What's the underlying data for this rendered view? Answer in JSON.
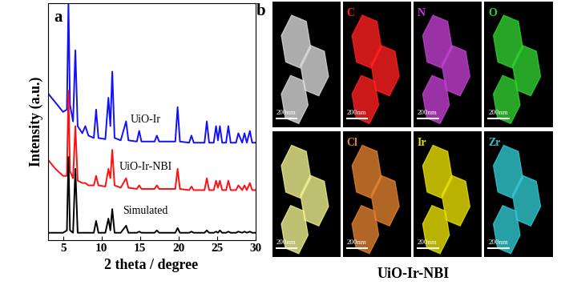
{
  "chart_data": {
    "type": "line",
    "panel_label": "a",
    "x_label": "2 theta / degree",
    "y_label": "Intensity (a.u.)",
    "x": [
      3,
      4,
      5,
      5.5,
      5.7,
      5.9,
      6.3,
      6.6,
      6.9,
      7.5,
      7.9,
      8.3,
      9.0,
      9.3,
      9.6,
      10.5,
      10.9,
      11.15,
      11.4,
      11.7,
      12.5,
      13.2,
      13.5,
      14.6,
      14.9,
      15.2,
      16.9,
      17.2,
      17.5,
      19.6,
      19.9,
      20.2,
      21.4,
      21.7,
      22.0,
      23.4,
      23.7,
      24.0,
      24.6,
      24.9,
      25.15,
      25.4,
      25.7,
      26.2,
      26.5,
      26.8,
      27.5,
      27.8,
      28.3,
      28.6,
      28.9,
      29.3,
      29.6,
      30
    ],
    "series": [
      {
        "name": "UiO-Ir",
        "color": "#1010ff",
        "values": [
          62,
          58,
          54,
          55,
          100,
          57,
          50,
          80,
          48,
          45,
          48,
          44,
          43,
          55,
          43,
          42.5,
          60,
          48,
          71,
          43,
          42,
          50,
          42,
          41.5,
          46,
          41.5,
          41.5,
          44,
          41.5,
          41.5,
          56,
          41.5,
          41,
          44,
          41,
          41,
          50,
          41,
          41,
          48,
          42,
          48,
          41,
          41,
          48,
          41,
          41,
          45,
          41,
          45,
          41,
          46,
          41,
          41
        ]
      },
      {
        "name": "UiO-Ir-NBI",
        "color": "#ff1010",
        "values": [
          34,
          30,
          27,
          27,
          63,
          29,
          26,
          48,
          25,
          24,
          24,
          23,
          23,
          27,
          23,
          22.5,
          30,
          26,
          38,
          23,
          22,
          26,
          22,
          21.5,
          23,
          21.5,
          21.5,
          23,
          21.5,
          21.5,
          30,
          21.5,
          21,
          22.5,
          21,
          21,
          26,
          21,
          21,
          25,
          22,
          25,
          21,
          21,
          25,
          21,
          21,
          23,
          21,
          23,
          21,
          24,
          21,
          21
        ]
      },
      {
        "name": "Simulated",
        "color": "#000000",
        "values": [
          3,
          3,
          3,
          4,
          35,
          4,
          3,
          30,
          3,
          3,
          3,
          3,
          3,
          8,
          3,
          3,
          9,
          4,
          13,
          3,
          3,
          6,
          3,
          3,
          3.5,
          3,
          3,
          4,
          3,
          3,
          5,
          3,
          3,
          3.5,
          3,
          3,
          4,
          3,
          3,
          3.5,
          3,
          4,
          3,
          3,
          3.5,
          3,
          3,
          3.5,
          3,
          3.5,
          3,
          3.5,
          3,
          3
        ]
      }
    ],
    "xlim": [
      3,
      30
    ],
    "xticks": [
      5,
      10,
      15,
      20,
      25,
      30
    ],
    "ylim": [
      0,
      100
    ],
    "tick_labels": "x"
  },
  "image_panel": {
    "panel_label": "b",
    "caption": "UiO-Ir-NBI",
    "panels": [
      {
        "color": "#d8d8d8",
        "scale_bar": "200nm"
      },
      {
        "element": "C",
        "color": "#ff2020",
        "scale_bar": "200nm"
      },
      {
        "element": "N",
        "color": "#c040d0",
        "scale_bar": "200nm"
      },
      {
        "element": "O",
        "color": "#30d030",
        "scale_bar": "200nm"
      },
      {
        "color": "#f0f090",
        "scale_bar": "200nm"
      },
      {
        "element": "Cl",
        "color": "#e08030",
        "scale_bar": "200nm"
      },
      {
        "element": "Ir",
        "color": "#e8e000",
        "scale_bar": "200nm"
      },
      {
        "element": "Zr",
        "color": "#30c8d0",
        "scale_bar": "200nm"
      }
    ]
  }
}
